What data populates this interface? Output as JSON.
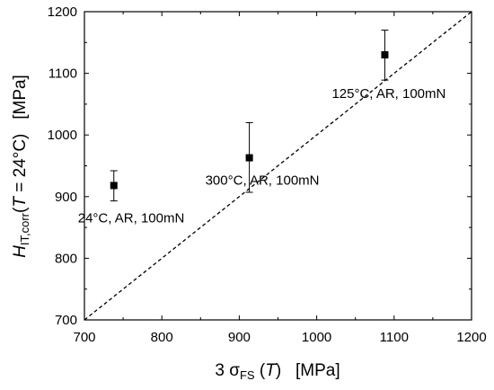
{
  "chart_data": {
    "type": "scatter",
    "title": "",
    "xlim": [
      700,
      1200
    ],
    "ylim": [
      700,
      1200
    ],
    "x_ticks": [
      700,
      800,
      900,
      1000,
      1100,
      1200
    ],
    "y_ticks": [
      700,
      800,
      900,
      1000,
      1100,
      1200
    ],
    "x_tick_labels": [
      "700",
      "800",
      "900",
      "1000",
      "1100",
      "1200"
    ],
    "y_tick_labels": [
      "700",
      "800",
      "900",
      "1000",
      "1100",
      "1200"
    ],
    "xlabel": {
      "prefix": "3 σ",
      "subscript": "FS",
      "paren_open": " (",
      "variable": "T",
      "paren_close": ")",
      "unit": "   [MPa]"
    },
    "ylabel": {
      "main": "H",
      "subscript": "IT,corr",
      "paren_open": "(",
      "variable": "T",
      "equals": " = 24°C)",
      "unit": "   [MPa]"
    },
    "grid": false,
    "points": [
      {
        "x": 738,
        "y": 918,
        "err_low": 893,
        "err_high": 942,
        "label": "24°C, AR, 100mN"
      },
      {
        "x": 913,
        "y": 963,
        "err_low": 907,
        "err_high": 1020,
        "label": "300°C, AR, 100mN"
      },
      {
        "x": 1088,
        "y": 1130,
        "err_low": 1089,
        "err_high": 1170,
        "label": "125°C, AR, 100mN"
      }
    ],
    "reference_line": {
      "style": "dashed",
      "from": [
        700,
        700
      ],
      "to": [
        1200,
        1200
      ]
    },
    "colors": {
      "marker": "#000000",
      "line": "#000000"
    }
  }
}
